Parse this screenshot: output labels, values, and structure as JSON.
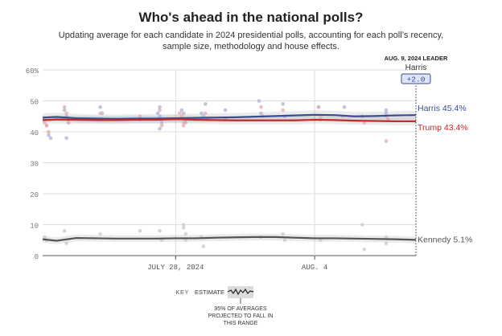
{
  "chart_data": {
    "type": "line",
    "title": "Who's ahead in the national polls?",
    "subtitle": "Updating average for each candidate in 2024 presidential polls, accounting for each poll’s recency, sample size, methodology and house effects.",
    "y_ticks": [
      "60%",
      "50",
      "40",
      "30",
      "20",
      "10",
      "0"
    ],
    "y_tick_values": [
      60,
      50,
      40,
      30,
      20,
      10,
      0
    ],
    "ylim": [
      0,
      60
    ],
    "xlim": [
      21.3,
      9.15
    ],
    "x_unit": "day of month (July 21 to Aug 9, 2024)",
    "x_ticks": [
      {
        "label": "JULY 28, 2024",
        "day": 28
      },
      {
        "label": "AUG. 4",
        "day": 35
      }
    ],
    "leader_box": {
      "date_label": "AUG. 9, 2024 LEADER",
      "name": "Harris",
      "margin": "+2.0",
      "day": 40.1
    },
    "series": [
      {
        "name": "Harris",
        "end_label": "Harris 45.4%",
        "color": "#3b4d8f",
        "dot_color": "#aab0d4",
        "x": [
          21.3,
          22,
          23,
          24,
          25,
          26,
          27,
          28,
          29,
          30,
          31,
          32,
          33,
          34,
          35,
          36,
          37,
          38,
          39,
          40.1
        ],
        "y": [
          44.6,
          44.8,
          44.4,
          44.3,
          44.2,
          44.3,
          44.3,
          44.4,
          44.5,
          44.6,
          44.7,
          44.9,
          45.1,
          45.3,
          45.5,
          45.4,
          45.0,
          45.1,
          45.3,
          45.4
        ],
        "band": 1.4,
        "dots": [
          [
            21.4,
            44
          ],
          [
            21.5,
            42
          ],
          [
            21.6,
            39
          ],
          [
            21.7,
            38
          ],
          [
            22.4,
            47
          ],
          [
            22.5,
            45
          ],
          [
            22.6,
            43
          ],
          [
            22.5,
            38
          ],
          [
            24.2,
            48
          ],
          [
            24.3,
            46
          ],
          [
            24.2,
            44
          ],
          [
            26.2,
            44
          ],
          [
            27.1,
            46
          ],
          [
            27.2,
            48
          ],
          [
            27.2,
            45
          ],
          [
            27.3,
            43
          ],
          [
            27.2,
            41
          ],
          [
            28.3,
            47
          ],
          [
            28.4,
            46
          ],
          [
            28.5,
            43
          ],
          [
            28.5,
            44
          ],
          [
            29.3,
            46
          ],
          [
            29.4,
            45
          ],
          [
            29.5,
            49
          ],
          [
            30.5,
            47
          ],
          [
            32.2,
            50
          ],
          [
            32.3,
            46
          ],
          [
            33.4,
            49
          ],
          [
            33.5,
            45
          ],
          [
            35.2,
            48
          ],
          [
            35.3,
            44
          ],
          [
            36.5,
            48
          ],
          [
            37.4,
            45
          ],
          [
            38.6,
            47
          ],
          [
            38.6,
            46
          ],
          [
            38.7,
            44
          ]
        ]
      },
      {
        "name": "Trump",
        "end_label": "Trump 43.4%",
        "color": "#c42a2a",
        "dot_color": "#e8a8a8",
        "x": [
          21.3,
          22,
          23,
          24,
          25,
          26,
          27,
          28,
          29,
          30,
          31,
          32,
          33,
          34,
          35,
          36,
          37,
          38,
          39,
          40.1
        ],
        "y": [
          43.8,
          44.0,
          43.9,
          43.8,
          43.8,
          43.9,
          43.9,
          44.1,
          43.9,
          43.8,
          43.7,
          43.7,
          43.7,
          43.7,
          43.9,
          43.8,
          43.6,
          43.5,
          43.4,
          43.4
        ],
        "band": 1.3,
        "dots": [
          [
            21.4,
            43
          ],
          [
            21.5,
            42
          ],
          [
            21.6,
            40
          ],
          [
            22.4,
            48
          ],
          [
            22.5,
            46
          ],
          [
            22.6,
            44
          ],
          [
            22.6,
            43
          ],
          [
            24.2,
            46
          ],
          [
            24.3,
            44
          ],
          [
            26.2,
            45
          ],
          [
            27.2,
            47
          ],
          [
            27.2,
            44
          ],
          [
            27.3,
            42
          ],
          [
            28.2,
            46
          ],
          [
            28.3,
            45
          ],
          [
            28.4,
            43
          ],
          [
            28.4,
            42
          ],
          [
            29.5,
            46
          ],
          [
            29.6,
            44
          ],
          [
            30.5,
            44
          ],
          [
            32.3,
            48
          ],
          [
            32.4,
            45
          ],
          [
            33.4,
            47
          ],
          [
            35.2,
            48
          ],
          [
            35.3,
            45
          ],
          [
            36.4,
            45
          ],
          [
            37.5,
            43
          ],
          [
            38.6,
            45
          ],
          [
            38.7,
            44
          ],
          [
            38.6,
            37
          ]
        ]
      },
      {
        "name": "Kennedy",
        "end_label": "Kennedy 5.1%",
        "color": "#555555",
        "dot_color": "#c8c8c8",
        "x": [
          21.3,
          22,
          23,
          24,
          25,
          26,
          27,
          28,
          29,
          30,
          31,
          32,
          33,
          34,
          35,
          36,
          37,
          38,
          39,
          40.1
        ],
        "y": [
          5.3,
          4.8,
          5.7,
          5.6,
          5.5,
          5.5,
          5.5,
          5.6,
          5.6,
          5.8,
          5.9,
          6.0,
          6.0,
          5.8,
          5.6,
          5.6,
          5.5,
          5.4,
          5.3,
          5.1
        ],
        "band": 1.1,
        "dots": [
          [
            21.4,
            6
          ],
          [
            21.5,
            5
          ],
          [
            22.4,
            8
          ],
          [
            22.5,
            4
          ],
          [
            24.2,
            7
          ],
          [
            26.2,
            8
          ],
          [
            27.2,
            8
          ],
          [
            27.3,
            5
          ],
          [
            28.4,
            10
          ],
          [
            28.4,
            9
          ],
          [
            28.5,
            7
          ],
          [
            28.5,
            5
          ],
          [
            29.3,
            6
          ],
          [
            29.4,
            3
          ],
          [
            32.3,
            6
          ],
          [
            33.4,
            7
          ],
          [
            33.5,
            5
          ],
          [
            35.3,
            5
          ],
          [
            37.4,
            10
          ],
          [
            37.5,
            2
          ],
          [
            38.6,
            6
          ],
          [
            38.6,
            4
          ]
        ]
      }
    ]
  },
  "key": {
    "label": "KEY",
    "estimate": "ESTIMATE",
    "band_note": [
      "95% OF AVERAGES",
      "PROJECTED TO FALL IN",
      "THIS RANGE"
    ]
  }
}
